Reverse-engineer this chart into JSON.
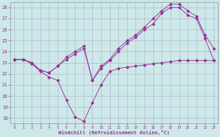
{
  "xlabel": "Windchill (Refroidissement éolien,°C)",
  "bg_color": "#cce8e8",
  "line_color": "#993399",
  "grid_color": "#aaaacc",
  "xlim_min": -0.5,
  "xlim_max": 23.5,
  "ylim_min": 17.5,
  "ylim_max": 28.5,
  "yticks": [
    18,
    19,
    20,
    21,
    22,
    23,
    24,
    25,
    26,
    27,
    28
  ],
  "xticks": [
    0,
    1,
    2,
    3,
    4,
    5,
    6,
    7,
    8,
    9,
    10,
    11,
    12,
    13,
    14,
    15,
    16,
    17,
    18,
    19,
    20,
    21,
    22,
    23
  ],
  "series1_x": [
    0,
    1,
    2,
    3,
    4,
    5,
    6,
    7,
    8,
    9,
    10,
    11,
    12,
    13,
    14,
    15,
    16,
    17,
    18,
    19,
    20,
    21,
    22,
    23
  ],
  "series1_y": [
    23.3,
    23.3,
    22.9,
    22.2,
    21.7,
    21.4,
    19.6,
    18.1,
    17.7,
    19.4,
    21.0,
    22.2,
    22.5,
    22.6,
    22.7,
    22.8,
    22.9,
    23.0,
    23.1,
    23.2,
    23.2,
    23.2,
    23.2,
    23.2
  ],
  "series2_x": [
    0,
    1,
    2,
    3,
    4,
    5,
    6,
    7,
    8,
    9,
    10,
    11,
    12,
    13,
    14,
    15,
    16,
    17,
    18,
    19,
    20,
    21,
    22,
    23
  ],
  "series2_y": [
    23.3,
    23.3,
    23.0,
    22.3,
    22.1,
    22.7,
    23.3,
    23.8,
    24.3,
    21.4,
    22.5,
    23.2,
    24.0,
    24.8,
    25.3,
    26.0,
    26.5,
    27.5,
    28.0,
    28.0,
    27.3,
    27.0,
    25.2,
    23.2
  ],
  "series3_x": [
    0,
    1,
    2,
    3,
    4,
    5,
    6,
    7,
    8,
    9,
    10,
    11,
    12,
    13,
    14,
    15,
    16,
    17,
    18,
    19,
    20,
    21,
    22,
    23
  ],
  "series3_y": [
    23.3,
    23.3,
    23.0,
    22.3,
    22.1,
    22.7,
    23.5,
    24.0,
    24.5,
    21.4,
    22.7,
    23.3,
    24.3,
    25.0,
    25.5,
    26.2,
    27.0,
    27.7,
    28.3,
    28.3,
    27.7,
    27.2,
    25.5,
    24.3
  ]
}
